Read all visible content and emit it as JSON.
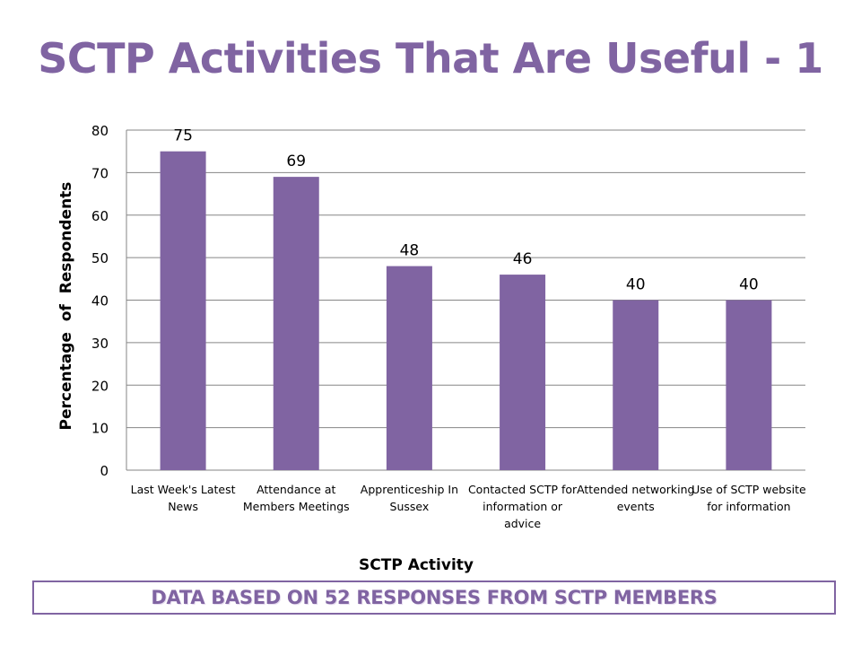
{
  "slide": {
    "title": "SCTP Activities That Are Useful - 1",
    "footnote": "DATA BASED ON 52 RESPONSES FROM SCTP MEMBERS"
  },
  "colors": {
    "accent": "#8064a2",
    "bar": "#8064a2",
    "gridline": "#868686",
    "text": "#000000"
  },
  "chart_data": {
    "type": "bar",
    "title": "",
    "xlabel": "SCTP Activity",
    "ylabel": "Percentage  of  Respondents",
    "categories": [
      "Last Week's Latest News",
      "Attendance at Members Meetings",
      "Apprenticeship In Sussex",
      "Contacted SCTP for information or advice",
      "Attended networking events",
      "Use of SCTP website for information"
    ],
    "values": [
      75,
      69,
      48,
      46,
      40,
      40
    ],
    "ylim": [
      0,
      80
    ],
    "yticks": [
      0,
      10,
      20,
      30,
      40,
      50,
      60,
      70,
      80
    ],
    "grid": true,
    "legend": "none"
  }
}
